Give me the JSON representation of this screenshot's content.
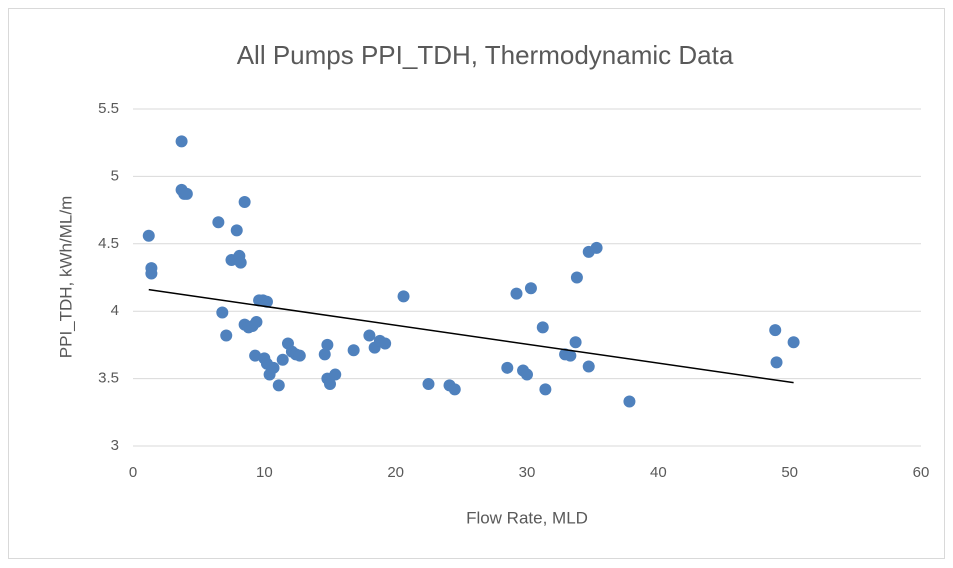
{
  "chart_data": {
    "type": "scatter",
    "title": "All Pumps PPI_TDH, Thermodynamic Data",
    "x_label": "Flow Rate, MLD",
    "y_label": "PPI_TDH, kWh/ML/m",
    "x": [
      1.2,
      1.4,
      1.4,
      3.7,
      3.7,
      3.9,
      4.1,
      6.5,
      6.8,
      7.1,
      7.5,
      7.9,
      8.1,
      8.2,
      8.5,
      8.5,
      8.8,
      9.1,
      9.4,
      9.3,
      9.6,
      9.9,
      10.2,
      10.0,
      10.2,
      10.4,
      10.7,
      11.1,
      11.4,
      11.8,
      12.1,
      12.4,
      12.7,
      14.6,
      14.8,
      14.8,
      15.0,
      15.4,
      16.8,
      18.0,
      18.4,
      18.8,
      19.2,
      20.6,
      22.5,
      24.1,
      24.5,
      28.5,
      29.2,
      29.7,
      30.0,
      30.3,
      31.2,
      31.4,
      32.9,
      33.3,
      33.7,
      33.8,
      34.7,
      35.3,
      34.7,
      37.8,
      48.9,
      49.0,
      50.3
    ],
    "values": [
      4.56,
      4.32,
      4.28,
      5.26,
      4.9,
      4.87,
      4.87,
      4.66,
      3.99,
      3.82,
      4.38,
      4.6,
      4.41,
      4.36,
      4.81,
      3.9,
      3.88,
      3.89,
      3.92,
      3.67,
      4.08,
      4.08,
      4.07,
      3.65,
      3.61,
      3.53,
      3.58,
      3.45,
      3.64,
      3.76,
      3.7,
      3.68,
      3.67,
      3.68,
      3.75,
      3.5,
      3.46,
      3.53,
      3.71,
      3.82,
      3.73,
      3.78,
      3.76,
      4.11,
      3.46,
      3.45,
      3.42,
      3.58,
      4.13,
      3.56,
      3.53,
      4.17,
      3.88,
      3.42,
      3.68,
      3.67,
      3.77,
      4.25,
      4.44,
      4.47,
      3.59,
      3.33,
      3.86,
      3.62,
      3.77
    ],
    "color": "#4f81bd",
    "trendline": {
      "x": [
        1.2,
        50.3
      ],
      "values": [
        4.16,
        3.47
      ],
      "color": "#000000"
    },
    "xlim": [
      0,
      60
    ],
    "xticks": [
      0,
      10,
      20,
      30,
      40,
      50,
      60
    ],
    "ylim": [
      3,
      5.5
    ],
    "yticks": [
      3,
      3.5,
      4,
      4.5,
      5,
      5.5
    ],
    "grid": true
  }
}
